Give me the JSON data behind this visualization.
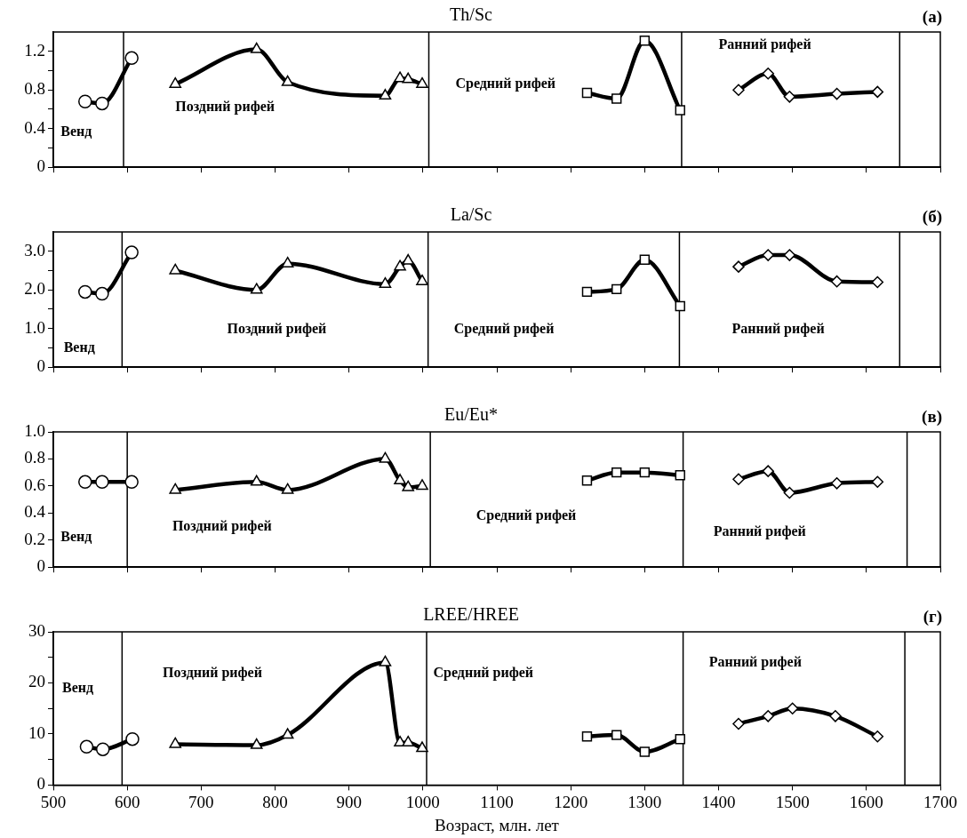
{
  "chart_data": [
    {
      "type": "line",
      "title": "Th/Sc",
      "annotations": [
        "(а)",
        "Венд",
        "Поздний рифей",
        "Средний рифей",
        "Ранний рифей"
      ],
      "xlim": [
        500,
        1700
      ],
      "xticks": [
        500,
        600,
        700,
        800,
        900,
        1000,
        1100,
        1200,
        1300,
        1400,
        1500,
        1600,
        1700
      ],
      "ylim": [
        0,
        1.4
      ],
      "yticks": [
        0,
        {
          "value": 0.2,
          "label": null
        },
        0.4,
        {
          "value": 0.6,
          "label": null
        },
        0.8,
        {
          "value": 1.0,
          "label": null
        },
        1.2
      ],
      "tick_labels": "y",
      "grid": false,
      "line_style": "solid",
      "ref_lines": [
        {
          "axis": "x",
          "value": 595,
          "color": "#000000"
        },
        {
          "axis": "x",
          "value": 1008,
          "color": "#000000"
        },
        {
          "axis": "x",
          "value": 1350,
          "color": "#000000"
        },
        {
          "axis": "x",
          "value": 1645,
          "color": "#000000"
        }
      ],
      "series": [
        {
          "color": "#000000",
          "marker": "circle",
          "x": [
            543,
            566,
            606
          ],
          "values": [
            0.68,
            0.66,
            1.13
          ]
        },
        {
          "color": "#000000",
          "marker": "triangle",
          "x": [
            665,
            775,
            817,
            949,
            969,
            980,
            999
          ],
          "values": [
            0.86,
            1.22,
            0.88,
            0.74,
            0.92,
            0.91,
            0.86
          ]
        },
        {
          "color": "#000000",
          "marker": "square",
          "x": [
            1222,
            1262,
            1300,
            1348
          ],
          "values": [
            0.77,
            0.71,
            1.31,
            0.59
          ]
        },
        {
          "color": "#000000",
          "marker": "diamond",
          "x": [
            1427,
            1467,
            1496,
            1560,
            1615
          ],
          "values": [
            0.8,
            0.97,
            0.73,
            0.76,
            0.78
          ]
        }
      ]
    },
    {
      "type": "line",
      "title": "La/Sc",
      "annotations": [
        "(б)",
        "Венд",
        "Поздний рифей",
        "Средний рифей",
        "Ранний рифей"
      ],
      "xlim": [
        500,
        1700
      ],
      "xticks": [
        500,
        600,
        700,
        800,
        900,
        1000,
        1100,
        1200,
        1300,
        1400,
        1500,
        1600,
        1700
      ],
      "ylim": [
        0,
        3.5
      ],
      "yticks": [
        0,
        {
          "value": 0.5,
          "label": null
        },
        {
          "value": 1,
          "label": "1.0"
        },
        {
          "value": 1.5,
          "label": null
        },
        {
          "value": 2,
          "label": "2.0"
        },
        {
          "value": 2.5,
          "label": null
        },
        {
          "value": 3,
          "label": "3.0"
        }
      ],
      "tick_labels": "y",
      "grid": false,
      "line_style": "solid",
      "ref_lines": [
        {
          "axis": "x",
          "value": 593,
          "color": "#000000"
        },
        {
          "axis": "x",
          "value": 1007,
          "color": "#000000"
        },
        {
          "axis": "x",
          "value": 1347,
          "color": "#000000"
        },
        {
          "axis": "x",
          "value": 1645,
          "color": "#000000"
        }
      ],
      "series": [
        {
          "color": "#000000",
          "marker": "circle",
          "x": [
            543,
            566,
            606
          ],
          "values": [
            1.95,
            1.9,
            2.97
          ]
        },
        {
          "color": "#000000",
          "marker": "triangle",
          "x": [
            665,
            775,
            817,
            949,
            969,
            980,
            999
          ],
          "values": [
            2.5,
            2.0,
            2.68,
            2.15,
            2.6,
            2.75,
            2.22
          ]
        },
        {
          "color": "#000000",
          "marker": "square",
          "x": [
            1222,
            1262,
            1300,
            1348
          ],
          "values": [
            1.95,
            2.02,
            2.78,
            1.58
          ]
        },
        {
          "color": "#000000",
          "marker": "diamond",
          "x": [
            1427,
            1467,
            1496,
            1560,
            1615
          ],
          "values": [
            2.6,
            2.9,
            2.9,
            2.22,
            2.2
          ]
        }
      ]
    },
    {
      "type": "line",
      "title": "Eu/Eu*",
      "annotations": [
        "(в)",
        "Венд",
        "Поздний рифей",
        "Средний рифей",
        "Ранний рифей"
      ],
      "xlim": [
        500,
        1700
      ],
      "xticks": [
        500,
        600,
        700,
        800,
        900,
        1000,
        1100,
        1200,
        1300,
        1400,
        1500,
        1600,
        1700
      ],
      "ylim": [
        0,
        1.0
      ],
      "yticks": [
        0,
        0.2,
        0.4,
        0.6,
        0.8,
        {
          "value": 1,
          "label": "1.0"
        }
      ],
      "tick_labels": "y",
      "grid": false,
      "line_style": "solid",
      "ref_lines": [
        {
          "axis": "x",
          "value": 600,
          "color": "#000000"
        },
        {
          "axis": "x",
          "value": 1010,
          "color": "#000000"
        },
        {
          "axis": "x",
          "value": 1352,
          "color": "#000000"
        },
        {
          "axis": "x",
          "value": 1655,
          "color": "#000000"
        }
      ],
      "series": [
        {
          "color": "#000000",
          "marker": "circle",
          "x": [
            543,
            566,
            606
          ],
          "values": [
            0.63,
            0.63,
            0.63
          ]
        },
        {
          "color": "#000000",
          "marker": "triangle",
          "x": [
            665,
            775,
            817,
            949,
            969,
            980,
            999
          ],
          "values": [
            0.57,
            0.63,
            0.57,
            0.8,
            0.64,
            0.59,
            0.6
          ]
        },
        {
          "color": "#000000",
          "marker": "square",
          "x": [
            1222,
            1262,
            1300,
            1348
          ],
          "values": [
            0.64,
            0.7,
            0.7,
            0.68
          ]
        },
        {
          "color": "#000000",
          "marker": "diamond",
          "x": [
            1427,
            1467,
            1496,
            1560,
            1615
          ],
          "values": [
            0.65,
            0.71,
            0.55,
            0.62,
            0.63
          ]
        }
      ]
    },
    {
      "type": "line",
      "title": "LREE/HREE",
      "xlabel": "Возраст, млн. лет",
      "annotations": [
        "(г)",
        "Венд",
        "Поздний рифей",
        "Средний рифей",
        "Ранний рифей"
      ],
      "xlim": [
        500,
        1700
      ],
      "xticks": [
        500,
        600,
        700,
        800,
        900,
        1000,
        1100,
        1200,
        1300,
        1400,
        1500,
        1600,
        1700
      ],
      "ylim": [
        0,
        30
      ],
      "yticks": [
        0,
        {
          "value": 5,
          "label": null
        },
        10,
        {
          "value": 15,
          "label": null
        },
        20,
        {
          "value": 25,
          "label": null
        },
        30
      ],
      "grid": false,
      "line_style": "solid",
      "ref_lines": [
        {
          "axis": "x",
          "value": 593,
          "color": "#000000"
        },
        {
          "axis": "x",
          "value": 1005,
          "color": "#000000"
        },
        {
          "axis": "x",
          "value": 1352,
          "color": "#000000"
        },
        {
          "axis": "x",
          "value": 1652,
          "color": "#000000"
        }
      ],
      "series": [
        {
          "color": "#000000",
          "marker": "circle",
          "x": [
            545,
            567,
            607
          ],
          "values": [
            7.5,
            7.0,
            9.0
          ]
        },
        {
          "color": "#000000",
          "marker": "triangle",
          "x": [
            665,
            775,
            817,
            949,
            969,
            980,
            999
          ],
          "values": [
            8.0,
            7.8,
            9.8,
            24.0,
            8.3,
            8.3,
            7.2
          ]
        },
        {
          "color": "#000000",
          "marker": "square",
          "x": [
            1222,
            1262,
            1300,
            1348
          ],
          "values": [
            9.5,
            9.8,
            6.5,
            9.0
          ]
        },
        {
          "color": "#000000",
          "marker": "diamond",
          "x": [
            1427,
            1467,
            1500,
            1558,
            1615
          ],
          "values": [
            12,
            13.5,
            15,
            13.5,
            9.5
          ]
        }
      ]
    }
  ]
}
